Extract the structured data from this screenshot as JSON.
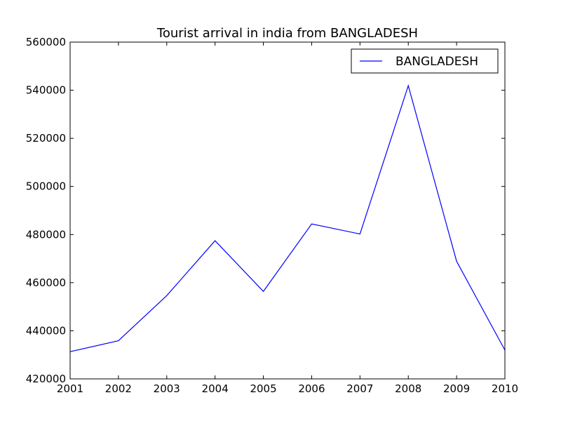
{
  "chart_data": {
    "type": "line",
    "title": "Tourist arrival in india from BANGLADESH",
    "xlabel": "",
    "ylabel": "",
    "x": [
      2001,
      2002,
      2003,
      2004,
      2005,
      2006,
      2007,
      2008,
      2009,
      2010
    ],
    "series": [
      {
        "name": "BANGLADESH",
        "color": "#0000ff",
        "values": [
          431312,
          435867,
          454611,
          477446,
          456371,
          484401,
          480240,
          541884,
          468899,
          431962
        ]
      }
    ],
    "xlim": [
      2001,
      2010
    ],
    "ylim": [
      420000,
      560000
    ],
    "xticks": [
      "2001",
      "2002",
      "2003",
      "2004",
      "2005",
      "2006",
      "2007",
      "2008",
      "2009",
      "2010"
    ],
    "yticks": [
      "420000",
      "440000",
      "460000",
      "480000",
      "500000",
      "520000",
      "540000",
      "560000"
    ],
    "grid": false,
    "legend_position": "top-right"
  }
}
